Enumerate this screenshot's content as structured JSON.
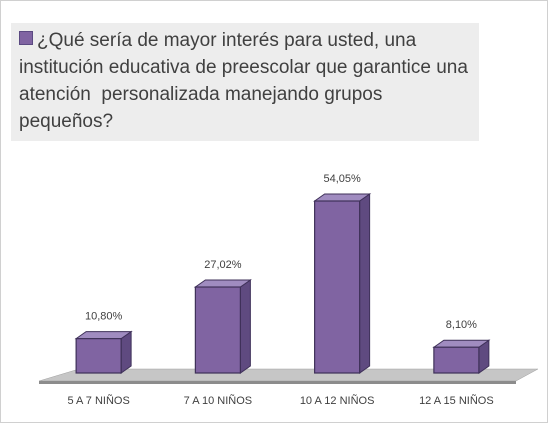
{
  "chart_data": {
    "type": "bar3d",
    "categories": [
      "5 A 7 NIÑOS",
      "7 A 10 NIÑOS",
      "10 A 12 NIÑOS",
      "12 A 15 NIÑOS"
    ],
    "series": [
      {
        "name": "¿Qué sería de mayor interés para usted, una institución educativa de preescolar que garantice una atención  personalizada manejando grupos pequeños?",
        "color": "#8064a2",
        "values": [
          10.8,
          27.02,
          54.05,
          8.1
        ],
        "value_labels": [
          "10,80%",
          "27,02%",
          "54,05%",
          "8,10%"
        ]
      }
    ],
    "legend": "top"
  }
}
